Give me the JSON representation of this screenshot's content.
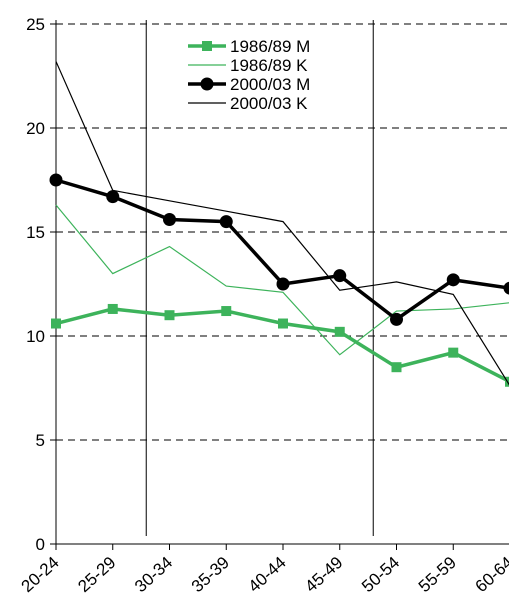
{
  "chart_data": {
    "type": "line",
    "title": "",
    "xlabel": "",
    "ylabel": "",
    "categories": [
      "20-24",
      "25-29",
      "30-34",
      "35-39",
      "40-44",
      "45-49",
      "50-54",
      "55-59",
      "60-64"
    ],
    "ylim": [
      0,
      25
    ],
    "yticks": [
      0,
      5,
      10,
      15,
      20,
      25
    ],
    "grid": "horizontal-dashed",
    "legend_position": "top",
    "series": [
      {
        "name": "1986/89 M",
        "values": [
          10.6,
          11.3,
          11.0,
          11.2,
          10.6,
          10.2,
          8.5,
          9.2,
          7.8
        ],
        "color": "#3db35b",
        "marker": "square",
        "weight": "thick"
      },
      {
        "name": "1986/89 K",
        "values": [
          16.3,
          13.0,
          14.3,
          12.4,
          12.1,
          9.1,
          11.2,
          11.3,
          11.6
        ],
        "color": "#3db35b",
        "marker": "none",
        "weight": "thin"
      },
      {
        "name": "2000/03 M",
        "values": [
          17.5,
          16.7,
          15.6,
          15.5,
          12.5,
          12.9,
          10.8,
          12.7,
          12.3
        ],
        "color": "#000000",
        "marker": "circle",
        "weight": "thick"
      },
      {
        "name": "2000/03 K",
        "values": [
          23.2,
          17.0,
          16.5,
          16.0,
          15.5,
          12.2,
          12.6,
          12.0,
          7.6
        ],
        "color": "#000000",
        "marker": "none",
        "weight": "thin"
      }
    ],
    "separators_after": [
      "25-29",
      "45-49"
    ]
  }
}
